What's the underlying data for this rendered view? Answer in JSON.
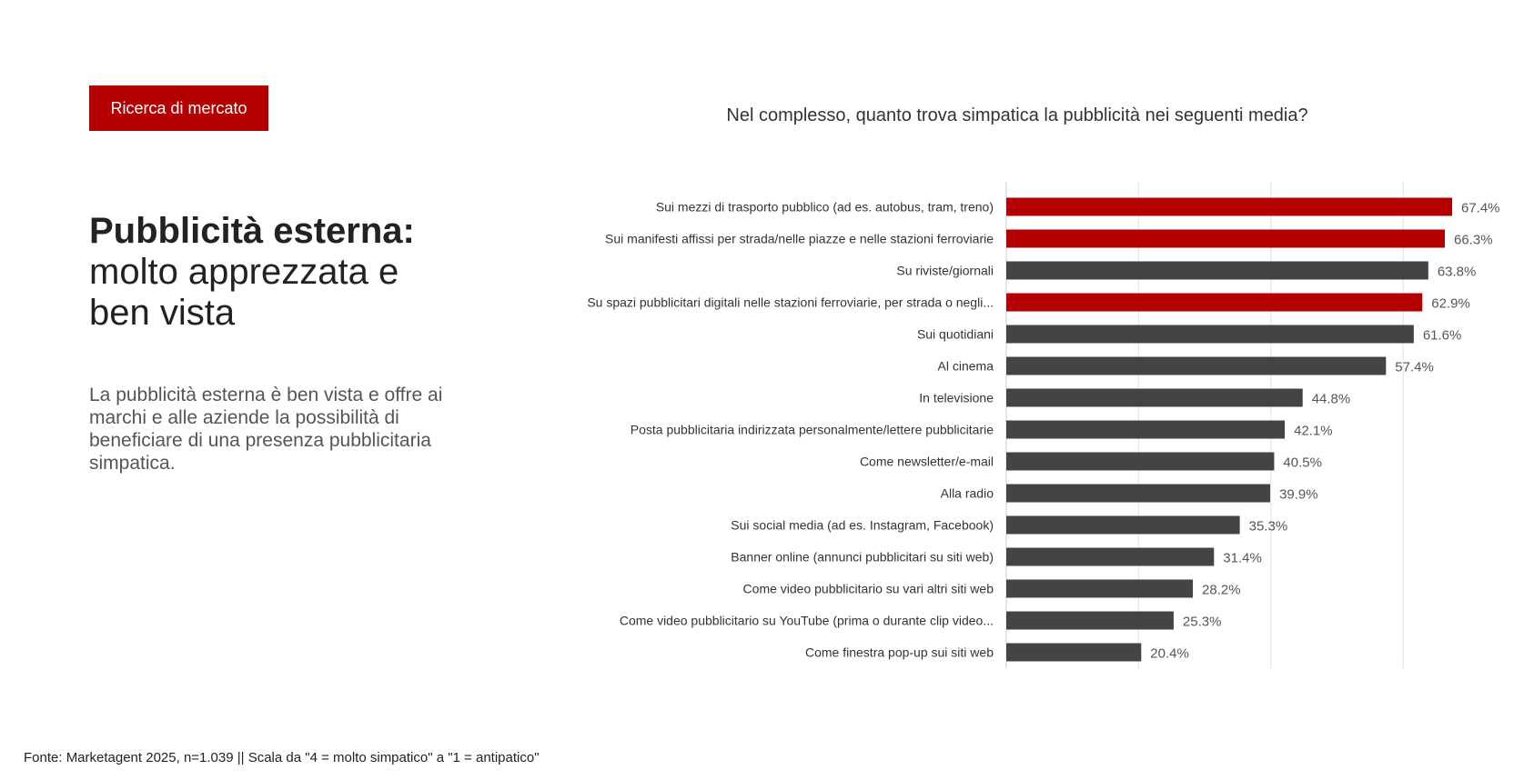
{
  "tag": "Ricerca di mercato",
  "headline": {
    "bold": "Pubblicità esterna:",
    "light": "molto apprezzata e ben vista"
  },
  "body": "La pubblicità esterna è ben vista e offre ai marchi e alle aziende la possibilità di beneficiare di una presenza pubblicitaria simpatica.",
  "question": "Nel complesso, quanto trova simpatica la pubblicità nei seguenti media?",
  "footnote": "Fonte: Marketagent 2025, n=1.039 || Scala da \"4 = molto simpatico\" a \"1 = antipatico\"",
  "chart_data": {
    "type": "bar",
    "orientation": "horizontal",
    "categories": [
      "Sui mezzi di trasporto pubblico (ad es. autobus, tram, treno)",
      "Sui manifesti affissi per strada/nelle piazze e nelle stazioni ferroviarie",
      "Su riviste/giornali",
      "Su spazi pubblicitari digitali nelle stazioni ferroviarie, per strada o negli...",
      "Sui quotidiani",
      "Al cinema",
      "In televisione",
      "Posta pubblicitaria indirizzata personalmente/lettere pubblicitarie",
      "Come newsletter/e-mail",
      "Alla radio",
      "Sui social media (ad es. Instagram, Facebook)",
      "Banner online (annunci pubblicitari su siti web)",
      "Come video pubblicitario su vari altri siti web",
      "Come video pubblicitario su YouTube (prima o durante clip video...",
      "Come finestra pop-up sui siti web"
    ],
    "values": [
      67.4,
      66.3,
      63.8,
      62.9,
      61.6,
      57.4,
      44.8,
      42.1,
      40.5,
      39.9,
      35.3,
      31.4,
      28.2,
      25.3,
      20.4
    ],
    "value_labels": [
      "67.4%",
      "66.3%",
      "63.8%",
      "62.9%",
      "61.6%",
      "57.4%",
      "44.8%",
      "42.1%",
      "40.5%",
      "39.9%",
      "35.3%",
      "31.4%",
      "28.2%",
      "25.3%",
      "20.4%"
    ],
    "highlighted": [
      true,
      true,
      false,
      true,
      false,
      false,
      false,
      false,
      false,
      false,
      false,
      false,
      false,
      false,
      false
    ],
    "xlim": [
      0,
      80
    ],
    "grid": true,
    "colors": {
      "highlight": "#b30000",
      "default": "#444444",
      "grid": "#e2e2e2"
    }
  }
}
